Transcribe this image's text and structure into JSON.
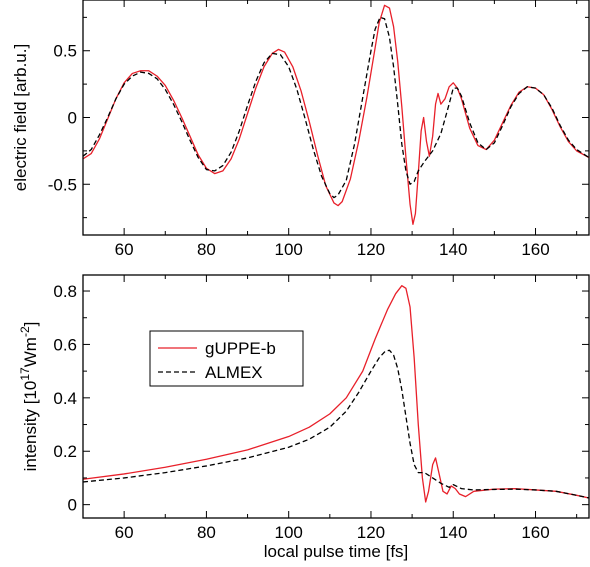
{
  "chart_data": [
    {
      "type": "line",
      "xlabel": "",
      "ylabel": "electric field [arb.u.]",
      "xlim": [
        50,
        173
      ],
      "ylim": [
        -0.88,
        0.88
      ],
      "xticks": [
        60,
        80,
        100,
        120,
        140,
        160
      ],
      "yticks": [
        -0.5,
        0,
        0.5
      ],
      "ytick_labels": [
        "-0.5",
        "0",
        "0.5"
      ],
      "grid": false,
      "series": [
        {
          "name": "gUPPE-b",
          "color": "#e8202a",
          "dash": "solid",
          "x": [
            50,
            52,
            54,
            56,
            58,
            60,
            62,
            64,
            66,
            68,
            70,
            72,
            74,
            76,
            78,
            80,
            82,
            84,
            86,
            88,
            90,
            92,
            94,
            96,
            97.5,
            99,
            101,
            103,
            105,
            107,
            109,
            111,
            112,
            113,
            115,
            117,
            119,
            121,
            122,
            123.3,
            124.5,
            125.5,
            126.5,
            127.5,
            128.5,
            129.5,
            130.2,
            130.8,
            131.5,
            132.2,
            132.8,
            133.5,
            134.2,
            135,
            135.7,
            136.3,
            137,
            138,
            139,
            140,
            141,
            142,
            144,
            146,
            148,
            150,
            152,
            154,
            156,
            158,
            160,
            162,
            164,
            166,
            168,
            170,
            173
          ],
          "y": [
            -0.31,
            -0.27,
            -0.16,
            -0.01,
            0.14,
            0.26,
            0.33,
            0.35,
            0.35,
            0.31,
            0.24,
            0.13,
            0.0,
            -0.14,
            -0.28,
            -0.38,
            -0.42,
            -0.4,
            -0.31,
            -0.16,
            0.03,
            0.22,
            0.38,
            0.48,
            0.51,
            0.49,
            0.38,
            0.2,
            -0.03,
            -0.28,
            -0.51,
            -0.64,
            -0.66,
            -0.63,
            -0.46,
            -0.18,
            0.15,
            0.52,
            0.71,
            0.84,
            0.82,
            0.68,
            0.42,
            0.08,
            -0.3,
            -0.65,
            -0.8,
            -0.72,
            -0.42,
            -0.1,
            0.0,
            -0.18,
            -0.29,
            -0.14,
            0.1,
            0.18,
            0.1,
            0.14,
            0.23,
            0.26,
            0.22,
            0.14,
            -0.08,
            -0.21,
            -0.24,
            -0.17,
            -0.04,
            0.09,
            0.19,
            0.23,
            0.22,
            0.17,
            0.06,
            -0.07,
            -0.18,
            -0.25,
            -0.3
          ]
        },
        {
          "name": "ALMEX",
          "color": "#000000",
          "dash": "dashed",
          "x": [
            50,
            52,
            54,
            56,
            58,
            60,
            62,
            64,
            66,
            68,
            70,
            72,
            74,
            76,
            78,
            80,
            82,
            84,
            86,
            88,
            90,
            92,
            94,
            96,
            98,
            100,
            102,
            104,
            106,
            108,
            110,
            111,
            112,
            114,
            116,
            118,
            120,
            121,
            122.2,
            123.3,
            124.5,
            125.5,
            126.5,
            127.5,
            128.5,
            129.5,
            130.5,
            131.5,
            133,
            135,
            137,
            139,
            140,
            141,
            142,
            144,
            146,
            148,
            150,
            152,
            154,
            156,
            158,
            160,
            162,
            164,
            166,
            168,
            170,
            173
          ],
          "y": [
            -0.29,
            -0.24,
            -0.13,
            0.0,
            0.14,
            0.25,
            0.31,
            0.34,
            0.33,
            0.29,
            0.21,
            0.1,
            -0.03,
            -0.17,
            -0.3,
            -0.39,
            -0.4,
            -0.36,
            -0.26,
            -0.1,
            0.09,
            0.27,
            0.41,
            0.48,
            0.47,
            0.38,
            0.21,
            -0.01,
            -0.24,
            -0.44,
            -0.57,
            -0.6,
            -0.58,
            -0.47,
            -0.2,
            0.15,
            0.5,
            0.66,
            0.75,
            0.74,
            0.6,
            0.38,
            0.1,
            -0.2,
            -0.4,
            -0.5,
            -0.48,
            -0.4,
            -0.33,
            -0.25,
            -0.12,
            0.1,
            0.22,
            0.22,
            0.16,
            -0.04,
            -0.19,
            -0.24,
            -0.19,
            -0.06,
            0.08,
            0.18,
            0.23,
            0.22,
            0.17,
            0.07,
            -0.06,
            -0.17,
            -0.24,
            -0.3
          ]
        }
      ]
    },
    {
      "type": "line",
      "xlabel": "local pulse time [fs]",
      "ylabel_main": "intensity [10",
      "ylabel_sup1": "17",
      "ylabel_mid": "Wm",
      "ylabel_sup2": "-2",
      "ylabel_end": "]",
      "xlim": [
        50,
        173
      ],
      "ylim": [
        -0.05,
        0.86
      ],
      "xticks": [
        60,
        80,
        100,
        120,
        140,
        160
      ],
      "yticks": [
        0,
        0.2,
        0.4,
        0.6,
        0.8
      ],
      "ytick_labels": [
        "0",
        "0.2",
        "0.4",
        "0.6",
        "0.8"
      ],
      "legend": "upper-left",
      "grid": false,
      "series": [
        {
          "name": "gUPPE-b",
          "color": "#e8202a",
          "dash": "solid",
          "x": [
            50,
            60,
            70,
            80,
            90,
            100,
            105,
            110,
            114,
            118,
            121,
            124,
            126,
            127.5,
            128.5,
            129.5,
            130.5,
            131.5,
            132.5,
            133.3,
            134,
            135,
            135.7,
            136.5,
            137.5,
            138.5,
            139.5,
            140.5,
            141.5,
            143,
            145,
            150,
            155,
            160,
            165,
            170,
            173
          ],
          "y": [
            0.095,
            0.115,
            0.14,
            0.17,
            0.205,
            0.255,
            0.29,
            0.34,
            0.4,
            0.5,
            0.62,
            0.73,
            0.79,
            0.82,
            0.81,
            0.74,
            0.55,
            0.3,
            0.1,
            0.01,
            0.05,
            0.15,
            0.175,
            0.12,
            0.05,
            0.04,
            0.07,
            0.06,
            0.04,
            0.03,
            0.05,
            0.058,
            0.06,
            0.055,
            0.05,
            0.035,
            0.025
          ]
        },
        {
          "name": "ALMEX",
          "color": "#000000",
          "dash": "dashed",
          "x": [
            50,
            60,
            70,
            80,
            90,
            100,
            105,
            110,
            114,
            117,
            120,
            122,
            123.5,
            124.5,
            125.5,
            126.5,
            127.5,
            128.5,
            129.5,
            130.5,
            131.5,
            133,
            135,
            137,
            139,
            140,
            142,
            145,
            150,
            155,
            160,
            165,
            170,
            173
          ],
          "y": [
            0.085,
            0.1,
            0.12,
            0.145,
            0.175,
            0.215,
            0.245,
            0.29,
            0.35,
            0.42,
            0.5,
            0.55,
            0.575,
            0.578,
            0.56,
            0.51,
            0.43,
            0.33,
            0.23,
            0.15,
            0.12,
            0.12,
            0.1,
            0.08,
            0.065,
            0.075,
            0.06,
            0.055,
            0.057,
            0.058,
            0.055,
            0.05,
            0.035,
            0.025
          ]
        }
      ]
    }
  ]
}
